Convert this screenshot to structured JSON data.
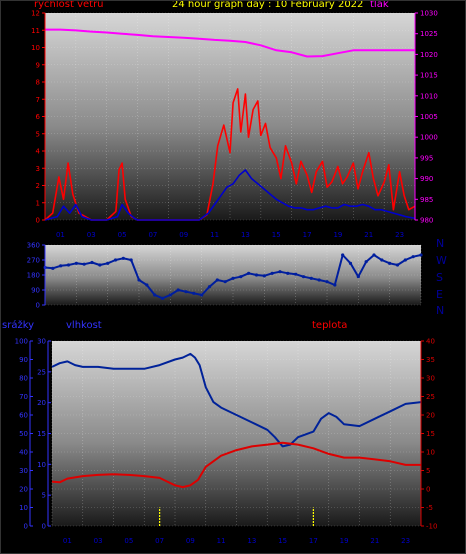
{
  "header": {
    "title": "24 hour graph day : 10 February 2022",
    "wind_label": "rychlost větru",
    "pressure_label": "tlak"
  },
  "lower_labels": {
    "precip": "srážky",
    "humidity": "vlhkost",
    "temperature": "teplota"
  },
  "compass": [
    "N",
    "W",
    "S",
    "E",
    "N"
  ],
  "colors": {
    "title": "#ffff00",
    "wind_label": "#ff0000",
    "pressure": "#ff00ff",
    "wind_gust": "#ff0000",
    "wind_avg": "#0000cc",
    "direction": "#001e9e",
    "humidity": "#002299",
    "temperature": "#dd0000",
    "precip": "#ffff00",
    "left_axis": "#3333ff",
    "compass": "#000099",
    "hour_labels": "#0000cc"
  },
  "chart_data": [
    {
      "type": "line",
      "panel": "wind-pressure",
      "x_ticks": [
        "01",
        "03",
        "05",
        "07",
        "09",
        "11",
        "13",
        "15",
        "17",
        "19",
        "21",
        "23"
      ],
      "xlim": [
        0,
        24
      ],
      "ylim_left": [
        0,
        12
      ],
      "left_ticks": [
        "0",
        "1",
        "2",
        "3",
        "4",
        "5",
        "6",
        "7",
        "8",
        "9",
        "10",
        "11",
        "12"
      ],
      "ylim_right": [
        980,
        1030
      ],
      "right_ticks": [
        "980",
        "985",
        "990",
        "995",
        "1000",
        "1005",
        "1010",
        "1015",
        "1020",
        "1025",
        "1030"
      ],
      "series": [
        {
          "name": "tlak",
          "axis": "right",
          "x": [
            0,
            1,
            2,
            3,
            4,
            5,
            6,
            7,
            8,
            9,
            10,
            11,
            12,
            13,
            14,
            15,
            16,
            17,
            18,
            19,
            20,
            21,
            22,
            23,
            24
          ],
          "values": [
            1026,
            1026,
            1025.8,
            1025.5,
            1025.3,
            1025,
            1024.7,
            1024.4,
            1024.2,
            1024,
            1023.8,
            1023.5,
            1023.3,
            1023,
            1022.2,
            1021,
            1020.5,
            1019.5,
            1019.6,
            1020.3,
            1021,
            1021,
            1021,
            1021,
            1021
          ]
        },
        {
          "name": "",
          "x": [
            0,
            0.5,
            0.9,
            1.2,
            1.5,
            1.8,
            2.2,
            3,
            4,
            4.6,
            4.8,
            5.0,
            5.2,
            5.6,
            6,
            7,
            8,
            9,
            10,
            10.5,
            10.9,
            11.2,
            11.6,
            12,
            12.2,
            12.5,
            12.7,
            13,
            13.2,
            13.5,
            13.8,
            14,
            14.3,
            14.6,
            15,
            15.3,
            15.6,
            16,
            16.3,
            16.6,
            17,
            17.3,
            17.6,
            18,
            18.3,
            18.6,
            19,
            19.3,
            19.6,
            20,
            20.3,
            20.6,
            21,
            21.3,
            21.6,
            22,
            22.3,
            22.6,
            23,
            23.3,
            23.6,
            24
          ],
          "values": [
            0,
            0.4,
            2.5,
            1.2,
            3.3,
            1.5,
            0.4,
            0,
            0,
            0.5,
            2.9,
            3.3,
            1.2,
            0.2,
            0,
            0,
            0,
            0,
            0,
            0.3,
            2.1,
            4.3,
            5.5,
            3.9,
            6.8,
            7.6,
            5.1,
            7.3,
            4.8,
            6.4,
            6.9,
            4.9,
            5.6,
            4.2,
            3.6,
            2.4,
            4.3,
            3.3,
            2.1,
            3.4,
            2.6,
            1.6,
            2.8,
            3.4,
            1.9,
            2.2,
            3.1,
            2.1,
            2.5,
            3.3,
            1.8,
            2.8,
            3.9,
            2.4,
            1.4,
            2.2,
            3.2,
            0.6,
            2.8,
            1.4,
            0.6,
            0.8
          ]
        },
        {
          "name": "",
          "x": [
            0,
            0.8,
            1.2,
            1.6,
            2,
            2.4,
            3,
            4,
            4.7,
            5,
            5.4,
            5.8,
            6,
            10,
            10.6,
            11,
            11.4,
            11.8,
            12.2,
            12.6,
            13,
            13.4,
            13.8,
            14.2,
            14.6,
            15,
            15.4,
            15.8,
            16.2,
            16.6,
            17,
            17.4,
            17.8,
            18.2,
            18.6,
            19,
            19.4,
            19.8,
            20.2,
            20.6,
            21,
            21.4,
            21.8,
            22.2,
            22.6,
            23,
            23.4,
            24
          ],
          "values": [
            0,
            0.2,
            0.8,
            0.4,
            0.9,
            0.2,
            0,
            0,
            0.2,
            0.9,
            0.4,
            0.1,
            0,
            0,
            0.4,
            0.9,
            1.4,
            1.9,
            2.1,
            2.6,
            2.9,
            2.4,
            2.1,
            1.8,
            1.5,
            1.2,
            1.0,
            0.8,
            0.7,
            0.7,
            0.6,
            0.6,
            0.7,
            0.8,
            0.7,
            0.7,
            0.9,
            0.8,
            0.8,
            0.9,
            0.8,
            0.6,
            0.6,
            0.5,
            0.4,
            0.3,
            0.2,
            0.1
          ]
        }
      ]
    },
    {
      "type": "scatter",
      "panel": "direction",
      "xlim": [
        0,
        24
      ],
      "ylim": [
        0,
        360
      ],
      "y_ticks": [
        "0",
        "90",
        "180",
        "270",
        "360"
      ],
      "series": [
        {
          "name": "",
          "x": [
            0,
            0.5,
            1,
            1.5,
            2,
            2.5,
            3,
            3.5,
            4,
            4.5,
            5,
            5.5,
            6,
            6.5,
            7,
            7.5,
            8,
            8.5,
            9,
            9.5,
            10,
            10.5,
            11,
            11.5,
            12,
            12.5,
            13,
            13.5,
            14,
            14.5,
            15,
            15.5,
            16,
            16.5,
            17,
            17.5,
            18,
            18.5,
            19,
            19.5,
            20,
            20.5,
            21,
            21.5,
            22,
            22.5,
            23,
            23.5,
            24
          ],
          "values": [
            225,
            220,
            235,
            240,
            250,
            245,
            255,
            240,
            250,
            270,
            280,
            270,
            150,
            120,
            60,
            40,
            60,
            90,
            80,
            70,
            60,
            110,
            150,
            140,
            160,
            170,
            190,
            180,
            175,
            190,
            200,
            190,
            185,
            170,
            160,
            150,
            140,
            120,
            300,
            250,
            170,
            260,
            300,
            270,
            250,
            240,
            270,
            290,
            300
          ]
        }
      ]
    },
    {
      "type": "line",
      "panel": "humidity-temperature",
      "x_ticks": [
        "01",
        "03",
        "05",
        "07",
        "09",
        "11",
        "13",
        "15",
        "17",
        "19",
        "21",
        "23"
      ],
      "xlim": [
        0,
        24
      ],
      "ylim_left": [
        0,
        100
      ],
      "left_ticks": [
        "0",
        "10",
        "20",
        "30",
        "40",
        "50",
        "60",
        "70",
        "80",
        "90",
        "100"
      ],
      "ylim_left2": [
        0,
        30
      ],
      "left2_ticks": [
        "0",
        "5",
        "10",
        "15",
        "20",
        "25",
        "30"
      ],
      "ylim_right": [
        -10,
        40
      ],
      "right_ticks": [
        "-10",
        "-5",
        "0",
        "5",
        "10",
        "15",
        "20",
        "25",
        "30",
        "35",
        "40"
      ],
      "series": [
        {
          "name": "vlhkost",
          "axis": "left",
          "x": [
            0,
            0.5,
            1,
            1.5,
            2,
            3,
            4,
            5,
            6,
            7,
            8,
            8.5,
            9,
            9.3,
            9.6,
            10,
            10.5,
            11,
            12,
            13,
            14,
            14.5,
            15,
            15.5,
            16,
            17,
            17.5,
            18,
            18.5,
            19,
            20,
            21,
            22,
            23,
            24
          ],
          "values": [
            86,
            88,
            89,
            87,
            86,
            86,
            85,
            85,
            85,
            87,
            90,
            91,
            93,
            91,
            87,
            75,
            67,
            64,
            60,
            56,
            52,
            48,
            43,
            44,
            48,
            51,
            58,
            61,
            59,
            55,
            54,
            58,
            62,
            66,
            67
          ]
        },
        {
          "name": "teplota",
          "axis": "right",
          "x": [
            0,
            0.5,
            1,
            2,
            3,
            4,
            5,
            6,
            7,
            7.5,
            8,
            8.5,
            9,
            9.5,
            10,
            11,
            12,
            13,
            14,
            15,
            16,
            17,
            18,
            19,
            20,
            21,
            22,
            23,
            24
          ],
          "values": [
            2,
            1.8,
            2.8,
            3.5,
            3.8,
            4,
            3.8,
            3.5,
            3,
            2,
            1,
            0.5,
            1,
            2.5,
            6,
            9,
            10.5,
            11.5,
            12,
            12.5,
            12,
            11,
            9.5,
            8.5,
            8.5,
            8,
            7.5,
            6.5,
            6.5
          ]
        },
        {
          "name": "srážky",
          "type": "bar",
          "x": [
            7,
            17
          ],
          "values": [
            3,
            3
          ]
        }
      ]
    }
  ]
}
